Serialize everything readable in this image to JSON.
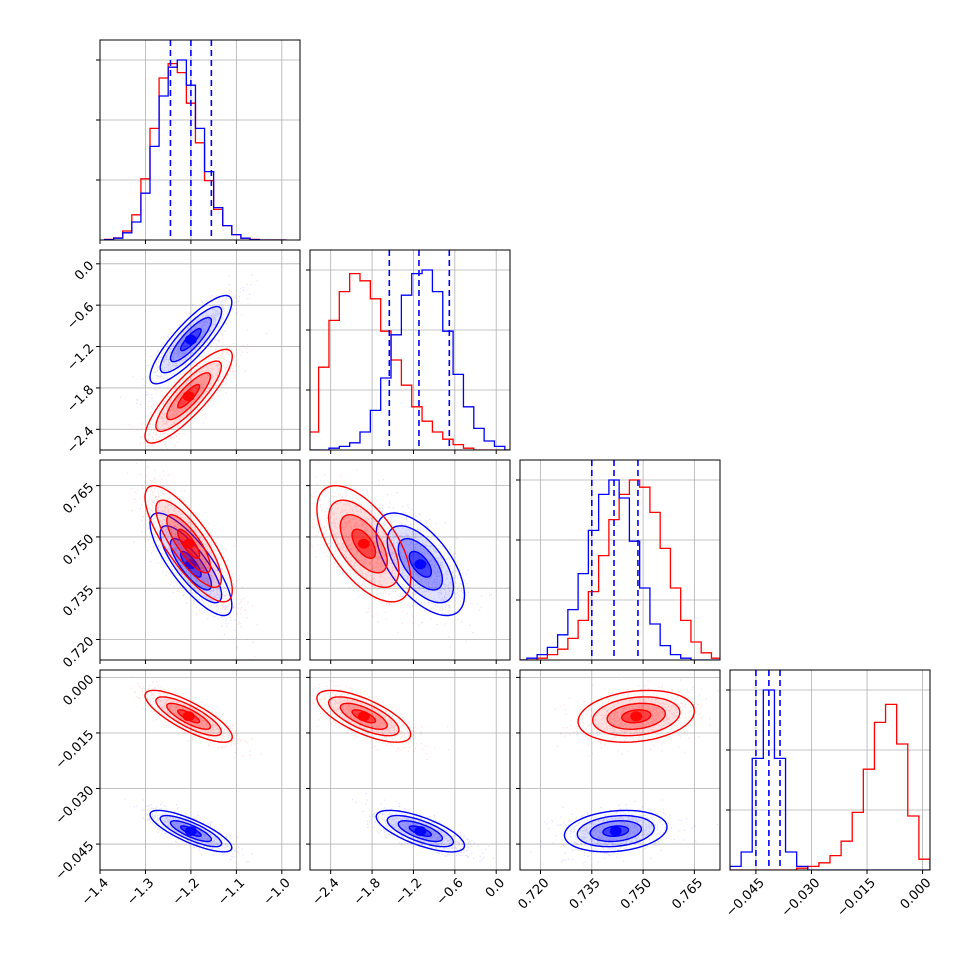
{
  "chart_data": {
    "type": "corner",
    "grid": true,
    "colors": {
      "series_a": "#ff0000",
      "series_b": "#0000ff"
    },
    "series": [
      {
        "color": "#0000ff",
        "params": [
          {
            "mean": -1.2,
            "sd": 0.045
          },
          {
            "mean": -1.1,
            "sd": 0.32
          },
          {
            "mean": 0.742,
            "sd": 0.0075
          },
          {
            "mean": -0.0415,
            "sd": 0.0028
          }
        ],
        "quantiles": [
          [
            -1.245,
            -1.2,
            -1.155
          ],
          [
            -1.55,
            -1.12,
            -0.68
          ],
          [
            0.735,
            0.7415,
            0.7485
          ],
          [
            -0.045,
            -0.0415,
            -0.0385
          ]
        ]
      },
      {
        "color": "#ff0000",
        "params": [
          {
            "mean": -1.205,
            "sd": 0.048
          },
          {
            "mean": -1.92,
            "sd": 0.34
          },
          {
            "mean": 0.748,
            "sd": 0.0085
          },
          {
            "mean": -0.0105,
            "sd": 0.0035
          }
        ]
      }
    ],
    "panels": [
      {
        "row": 0,
        "col": 0,
        "type": "histogram",
        "bins_x": [
          -1.38,
          -1.36,
          -1.34,
          -1.32,
          -1.3,
          -1.28,
          -1.26,
          -1.24,
          -1.22,
          -1.2,
          -1.18,
          -1.16,
          -1.14,
          -1.12,
          -1.1,
          -1.08,
          -1.06,
          -1.04,
          -1.02,
          -1.0
        ],
        "blue": [
          0.002,
          0.01,
          0.04,
          0.1,
          0.26,
          0.52,
          0.8,
          0.96,
          1.0,
          0.86,
          0.62,
          0.38,
          0.18,
          0.08,
          0.03,
          0.01,
          0.002,
          0.0,
          0.0,
          0.0
        ],
        "red": [
          0.003,
          0.012,
          0.05,
          0.14,
          0.34,
          0.62,
          0.9,
          0.98,
          0.93,
          0.76,
          0.54,
          0.33,
          0.17,
          0.08,
          0.03,
          0.01,
          0.003,
          0.0,
          0.0,
          0.0
        ]
      },
      {
        "row": 1,
        "col": 1,
        "type": "histogram",
        "bins_x": [
          -2.65,
          -2.5,
          -2.35,
          -2.2,
          -2.05,
          -1.9,
          -1.75,
          -1.6,
          -1.45,
          -1.3,
          -1.15,
          -1.0,
          -0.85,
          -0.7,
          -0.55,
          -0.4,
          -0.25,
          -0.1,
          0.05,
          0.2
        ],
        "red": [
          0.1,
          0.46,
          0.72,
          0.88,
          0.98,
          0.94,
          0.84,
          0.66,
          0.5,
          0.36,
          0.24,
          0.16,
          0.1,
          0.06,
          0.03,
          0.01,
          0.0,
          0.0,
          0.0,
          0.0
        ],
        "blue": [
          0.0,
          0.0,
          0.01,
          0.02,
          0.04,
          0.1,
          0.22,
          0.4,
          0.64,
          0.86,
          0.98,
          1.0,
          0.88,
          0.66,
          0.42,
          0.24,
          0.12,
          0.05,
          0.02,
          0.0
        ]
      },
      {
        "row": 2,
        "col": 2,
        "type": "histogram",
        "bins_x": [
          0.7145,
          0.7175,
          0.7205,
          0.7235,
          0.7265,
          0.7295,
          0.7325,
          0.7355,
          0.7385,
          0.7415,
          0.7445,
          0.7475,
          0.7505,
          0.7535,
          0.7565,
          0.7595,
          0.7625,
          0.7655,
          0.7685,
          0.7715
        ],
        "blue": [
          0.0,
          0.01,
          0.03,
          0.07,
          0.14,
          0.28,
          0.48,
          0.72,
          0.92,
          1.0,
          0.9,
          0.66,
          0.4,
          0.2,
          0.08,
          0.03,
          0.01,
          0.0,
          0.0,
          0.0
        ],
        "red": [
          0.0,
          0.0,
          0.01,
          0.03,
          0.06,
          0.12,
          0.22,
          0.38,
          0.58,
          0.78,
          0.92,
          1.0,
          0.96,
          0.82,
          0.62,
          0.4,
          0.22,
          0.1,
          0.04,
          0.01
        ]
      },
      {
        "row": 3,
        "col": 3,
        "type": "histogram",
        "bins_x": [
          -0.0535,
          -0.0505,
          -0.0475,
          -0.0445,
          -0.0415,
          -0.0385,
          -0.0355,
          -0.0325,
          -0.0295,
          -0.0265,
          -0.0235,
          -0.0205,
          -0.0175,
          -0.0145,
          -0.0115,
          -0.0085,
          -0.0055,
          -0.0025,
          0.0005,
          0.0035
        ],
        "blue": [
          0.0,
          0.02,
          0.1,
          0.62,
          1.0,
          0.62,
          0.1,
          0.02,
          0.0,
          0.0,
          0.0,
          0.0,
          0.0,
          0.0,
          0.0,
          0.0,
          0.0,
          0.0,
          0.0,
          0.0
        ],
        "red": [
          0.0,
          0.0,
          0.0,
          0.0,
          0.0,
          0.0,
          0.0,
          0.01,
          0.02,
          0.04,
          0.08,
          0.16,
          0.32,
          0.56,
          0.82,
          0.92,
          0.7,
          0.3,
          0.06,
          0.01
        ]
      },
      {
        "row": 1,
        "col": 0,
        "type": "2d-density",
        "xparam": 0,
        "yparam": 1,
        "rho": 0.85
      },
      {
        "row": 2,
        "col": 0,
        "type": "2d-density",
        "xparam": 0,
        "yparam": 2,
        "rho": -0.8
      },
      {
        "row": 2,
        "col": 1,
        "type": "2d-density",
        "xparam": 1,
        "yparam": 2,
        "rho": -0.6
      },
      {
        "row": 3,
        "col": 0,
        "type": "2d-density",
        "xparam": 0,
        "yparam": 3,
        "rho": -0.8
      },
      {
        "row": 3,
        "col": 1,
        "type": "2d-density",
        "xparam": 1,
        "yparam": 3,
        "rho": -0.7
      },
      {
        "row": 3,
        "col": 2,
        "type": "2d-density",
        "xparam": 2,
        "yparam": 3,
        "rho": 0.2
      }
    ],
    "axes": [
      {
        "range": [
          -1.4,
          -0.96
        ],
        "ticks": [
          -1.4,
          -1.3,
          -1.2,
          -1.1,
          -1.0
        ],
        "tick_labels": [
          "−1.4",
          "−1.3",
          "−1.2",
          "−1.1",
          "−1.0"
        ]
      },
      {
        "range": [
          -2.7,
          0.2
        ],
        "ticks": [
          -2.4,
          -1.8,
          -1.2,
          -0.6,
          0.0
        ],
        "tick_labels": [
          "−2.4",
          "−1.8",
          "−1.2",
          "−0.6",
          "0.0"
        ]
      },
      {
        "range": [
          0.714,
          0.7725
        ],
        "ticks": [
          0.72,
          0.735,
          0.75,
          0.765
        ],
        "tick_labels": [
          "0.720",
          "0.735",
          "0.750",
          "0.765"
        ]
      },
      {
        "range": [
          -0.052,
          0.002
        ],
        "ticks": [
          -0.045,
          -0.03,
          -0.015,
          0.0
        ],
        "tick_labels": [
          "−0.045",
          "−0.030",
          "−0.015",
          "0.000"
        ]
      }
    ]
  }
}
